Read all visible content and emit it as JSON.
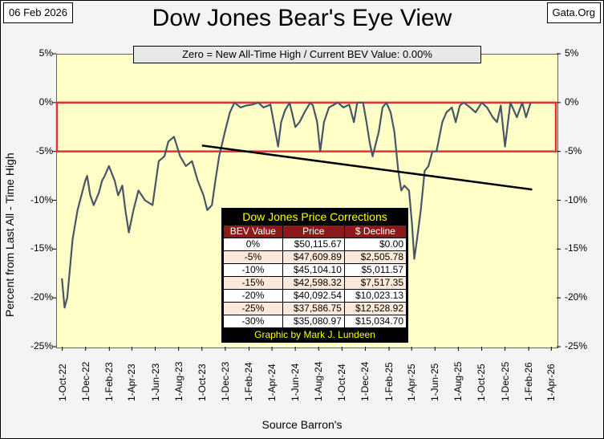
{
  "header": {
    "date": "06 Feb 2026",
    "site": "Gata.Org"
  },
  "chart_data": {
    "type": "line",
    "title": "Dow Jones Bear's Eye View",
    "subtitle": "Zero = New All-Time High / Current BEV Value:  0.00%",
    "ylabel": "Percent from Last All - Time High",
    "xlabel": "Source Barron's",
    "ylim": [
      -25,
      5
    ],
    "y_ticks": [
      "5%",
      "0%",
      "-5%",
      "-10%",
      "-15%",
      "-20%",
      "-25%"
    ],
    "x_ticks": [
      "1-Oct-22",
      "1-Dec-22",
      "1-Feb-23",
      "1-Apr-23",
      "1-Jun-23",
      "1-Aug-23",
      "1-Oct-23",
      "1-Dec-23",
      "1-Feb-24",
      "1-Apr-24",
      "1-Jun-24",
      "1-Aug-24",
      "1-Oct-24",
      "1-Dec-24",
      "1-Feb-25",
      "1-Apr-25",
      "1-Jun-25",
      "1-Aug-25",
      "1-Oct-25",
      "1-Dec-25",
      "1-Feb-26",
      "1-Apr-26"
    ],
    "grid": false,
    "series": [
      {
        "color": "#4a5568",
        "x": [
          "2022-09-30",
          "2022-10-07",
          "2022-10-14",
          "2022-10-21",
          "2022-10-28",
          "2022-11-10",
          "2022-11-30",
          "2022-12-05",
          "2022-12-13",
          "2022-12-22",
          "2023-01-05",
          "2023-01-13",
          "2023-01-20",
          "2023-01-31",
          "2023-02-15",
          "2023-02-24",
          "2023-03-07",
          "2023-03-15",
          "2023-03-24",
          "2023-04-05",
          "2023-04-18",
          "2023-05-05",
          "2023-05-25",
          "2023-06-10",
          "2023-06-25",
          "2023-07-05",
          "2023-07-20",
          "2023-08-05",
          "2023-08-20",
          "2023-09-05",
          "2023-09-20",
          "2023-10-05",
          "2023-10-15",
          "2023-10-27",
          "2023-11-05",
          "2023-11-15",
          "2023-11-30",
          "2023-12-13",
          "2023-12-25",
          "2024-01-10",
          "2024-01-25",
          "2024-02-10",
          "2024-02-25",
          "2024-03-10",
          "2024-03-28",
          "2024-04-10",
          "2024-04-17",
          "2024-04-25",
          "2024-05-05",
          "2024-05-17",
          "2024-06-01",
          "2024-06-12",
          "2024-06-25",
          "2024-07-10",
          "2024-07-17",
          "2024-07-28",
          "2024-08-05",
          "2024-08-15",
          "2024-08-28",
          "2024-09-06",
          "2024-09-20",
          "2024-10-05",
          "2024-10-20",
          "2024-11-01",
          "2024-11-10",
          "2024-11-25",
          "2024-12-04",
          "2024-12-12",
          "2024-12-20",
          "2025-01-05",
          "2025-01-15",
          "2025-01-25",
          "2025-02-05",
          "2025-02-15",
          "2025-02-25",
          "2025-03-05",
          "2025-03-13",
          "2025-03-25",
          "2025-04-02",
          "2025-04-08",
          "2025-04-15",
          "2025-04-25",
          "2025-05-05",
          "2025-05-15",
          "2025-05-25",
          "2025-06-05",
          "2025-06-20",
          "2025-07-01",
          "2025-07-15",
          "2025-07-25",
          "2025-08-05",
          "2025-08-15",
          "2025-09-01",
          "2025-09-15",
          "2025-10-01",
          "2025-10-15",
          "2025-10-30",
          "2025-11-10",
          "2025-11-20",
          "2025-12-01",
          "2025-12-15",
          "2026-01-01",
          "2026-01-15",
          "2026-01-25",
          "2026-02-06"
        ],
        "y": [
          -18,
          -21,
          -20,
          -17,
          -14,
          -11,
          -8,
          -7.5,
          -9.5,
          -10.5,
          -9.2,
          -8,
          -7.5,
          -6.5,
          -8,
          -9.5,
          -8.5,
          -11,
          -13.3,
          -11,
          -9,
          -10,
          -10.5,
          -6,
          -5.5,
          -4,
          -3.5,
          -5.5,
          -6.5,
          -6,
          -8,
          -9.5,
          -11,
          -10.5,
          -8,
          -5.5,
          -3,
          -1,
          0,
          -0.5,
          -0.3,
          -0.2,
          0,
          -0.5,
          -0.2,
          -3,
          -4.5,
          -2,
          -0.8,
          0,
          -2.5,
          -2,
          -1,
          0,
          -0.3,
          -2,
          -5,
          -2,
          -0.5,
          -0.3,
          0,
          -0.5,
          -0.2,
          -2,
          0,
          0,
          -2,
          -4,
          -5.5,
          -3,
          -0.5,
          0,
          -1,
          -3,
          -7,
          -9,
          -8.5,
          -9,
          -12.5,
          -16,
          -14,
          -11,
          -7,
          -6.5,
          -5,
          -5,
          -2,
          -1,
          -0.5,
          -2,
          -0.3,
          0,
          -0.5,
          -1,
          0,
          -0.5,
          -1.5,
          -2,
          -0.3,
          -4.5,
          0,
          -1.5,
          0,
          -1.5,
          0
        ]
      }
    ],
    "annotations": {
      "highlight_band_y": [
        -5,
        0
      ],
      "trend_line": {
        "x": [
          "2023-10-01",
          "2026-02-10"
        ],
        "y": [
          -4.4,
          -8.9
        ]
      }
    },
    "table": {
      "title": "Dow Jones Price Corrections",
      "columns": [
        "BEV Value",
        "Price",
        "$ Decline"
      ],
      "rows": [
        [
          "0%",
          "$50,115.67",
          "$0.00"
        ],
        [
          "-5%",
          "$47,609.89",
          "$2,505.78"
        ],
        [
          "-10%",
          "$45,104.10",
          "$5,011.57"
        ],
        [
          "-15%",
          "$42,598.32",
          "$7,517.35"
        ],
        [
          "-20%",
          "$40,092.54",
          "$10,023.13"
        ],
        [
          "-25%",
          "$37,586.75",
          "$12,528.92"
        ],
        [
          "-30%",
          "$35,080.97",
          "$15,034.70"
        ]
      ],
      "footer": "Graphic by Mark J. Lundeen",
      "header_color": "#8b1a1a",
      "row_colors": [
        "#ffffff",
        "#fde9d9"
      ]
    }
  }
}
